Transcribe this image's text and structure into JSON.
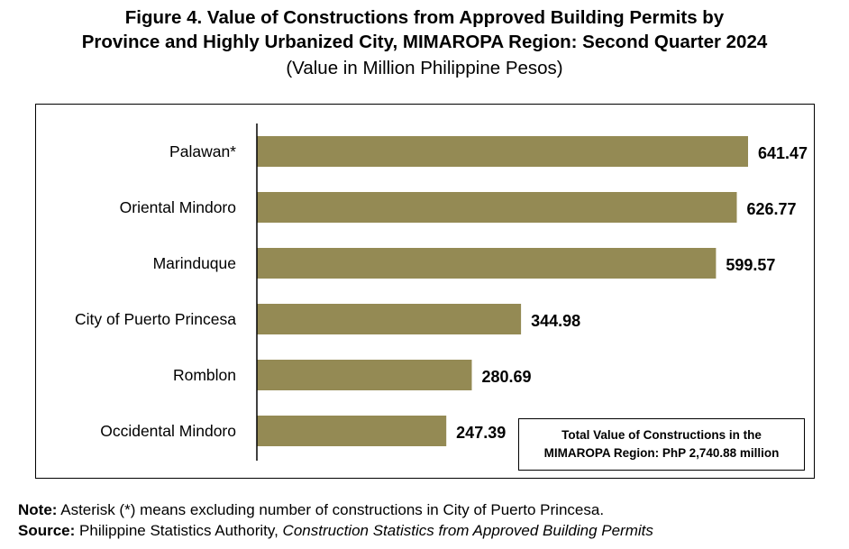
{
  "chart_data": {
    "type": "bar",
    "orientation": "horizontal",
    "title_line1": "Figure 4. Value of Constructions from Approved Building Permits by",
    "title_line2": "Province and Highly Urbanized City, MIMAROPA Region: Second Quarter 2024",
    "subtitle": "(Value in Million Philippine Pesos)",
    "categories": [
      "Palawan*",
      "Oriental Mindoro",
      "Marinduque",
      "City of Puerto Princesa",
      "Romblon",
      "Occidental Mindoro"
    ],
    "values": [
      641.47,
      626.77,
      599.57,
      344.98,
      280.69,
      247.39
    ],
    "value_labels": [
      "641.47",
      "626.77",
      "599.57",
      "344.98",
      "280.69",
      "247.39"
    ],
    "bar_color": "#948a54",
    "xlim": [
      0,
      641.47
    ],
    "grid": false,
    "annotation_line1": "Total Value of Constructions in the",
    "annotation_line2": "MIMAROPA Region: PhP 2,740.88 million"
  },
  "footer": {
    "note_label": "Note:",
    "note_text": " Asterisk (*) means excluding number of constructions in City of Puerto Princesa.",
    "source_label": "Source:",
    "source_text": " Philippine Statistics Authority, ",
    "source_title": "Construction Statistics from Approved Building Permits"
  }
}
